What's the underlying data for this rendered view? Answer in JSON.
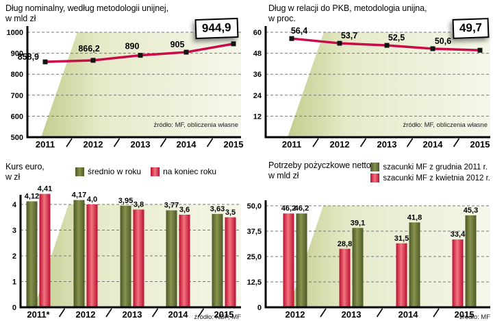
{
  "palette": {
    "line": "#c90c49",
    "marker": "#141414",
    "green_edge": "#4c5926",
    "green_mid": "#87934d",
    "red_edge": "#b90f33",
    "red_mid": "#f3747e",
    "band_left": "#c4cd8f",
    "band_mid": "#e6eac9",
    "band_right": "#f6f7ea",
    "grid": "#767676",
    "axis": "#000000"
  },
  "chart_data": [
    {
      "type": "line",
      "title": [
        "Dług nominalny, według metodologii unijnej,",
        "w mld zł"
      ],
      "source": "źródło: MF, obliczenia własne",
      "callout": "944,9",
      "categories": [
        "2011",
        "2012",
        "2013",
        "2014",
        "2015"
      ],
      "values": [
        858.9,
        866.2,
        890,
        905,
        944.9
      ],
      "point_labels": [
        "858,9",
        "866,2",
        "890",
        "905",
        ""
      ],
      "ylim": [
        500,
        1000
      ],
      "yticks": [
        500,
        600,
        700,
        800,
        900,
        1000
      ],
      "ytick_labels": [
        "500",
        "600",
        "700",
        "800",
        "900",
        "1000"
      ],
      "grid": "dashed-horizontal",
      "legend_position": "none"
    },
    {
      "type": "line",
      "title": [
        "Dług w relacji do PKB, metodologia unijna,",
        "w proc."
      ],
      "source": "źródło: MF, obliczenia własne",
      "callout": "49,7",
      "categories": [
        "2011",
        "2012",
        "2013",
        "2014",
        "2015"
      ],
      "values": [
        56.4,
        53.7,
        52.5,
        50.6,
        49.7
      ],
      "point_labels": [
        "56,4",
        "53,7",
        "52,5",
        "50,6",
        ""
      ],
      "ylim": [
        0,
        60
      ],
      "yticks": [
        12,
        24,
        36,
        48,
        60
      ],
      "ytick_labels": [
        "12",
        "24",
        "36",
        "48",
        "60"
      ],
      "grid": "dashed-horizontal",
      "legend_position": "none"
    },
    {
      "type": "bar",
      "title": [
        "Kurs euro,",
        "w zł"
      ],
      "source": "źródło: NBP, MF",
      "legend": [
        {
          "color_key": "green",
          "label": "średnio w roku"
        },
        {
          "color_key": "red",
          "label": "na koniec roku"
        }
      ],
      "categories": [
        "2011*",
        "2012",
        "2013",
        "2014",
        "2015"
      ],
      "series": [
        {
          "name": "średnio w roku",
          "color_key": "green",
          "values": [
            4.12,
            4.17,
            3.95,
            3.77,
            3.63
          ],
          "labels": [
            "4,12",
            "4,17",
            "3,95",
            "3,77",
            "3,63"
          ]
        },
        {
          "name": "na koniec roku",
          "color_key": "red",
          "values": [
            4.41,
            4.0,
            3.8,
            3.6,
            3.5
          ],
          "labels": [
            "4,41",
            "4,0",
            "3,8",
            "3,6",
            "3,5"
          ]
        }
      ],
      "ylim": [
        0,
        4.5
      ],
      "yticks": [
        0,
        1,
        2,
        3,
        4
      ],
      "ytick_labels": [
        "0",
        "1",
        "2",
        "3",
        "4"
      ],
      "grid": "dashed-horizontal",
      "legend_position": "top"
    },
    {
      "type": "bar",
      "title": [
        "Potrzeby pożyczkowe netto,",
        "w mld zł"
      ],
      "source": "źródło: MF",
      "legend": [
        {
          "color_key": "green",
          "label": "szacunki MF z grudnia 2011 r."
        },
        {
          "color_key": "red",
          "label": "szacunki MF z kwietnia 2012 r."
        }
      ],
      "categories": [
        "2012",
        "2013",
        "2014",
        "2015"
      ],
      "series": [
        {
          "name": "szacunki MF z kwietnia 2012 r.",
          "color_key": "red",
          "values": [
            46.2,
            28.8,
            31.5,
            33.4
          ],
          "labels": [
            "46,2",
            "28,8",
            "31,5",
            "33,4"
          ]
        },
        {
          "name": "szacunki MF z grudnia 2011 r.",
          "color_key": "green",
          "values": [
            46.2,
            39.1,
            41.8,
            45.3
          ],
          "labels": [
            "46,2",
            "39,1",
            "41,8",
            "45,3"
          ]
        }
      ],
      "ylim": [
        0,
        50
      ],
      "yticks": [
        0,
        12.5,
        25,
        37.5,
        50
      ],
      "ytick_labels": [
        "0",
        "12,5",
        "25,0",
        "37,5",
        "50,0"
      ],
      "grid": "dashed-horizontal",
      "legend_position": "top-right"
    }
  ]
}
